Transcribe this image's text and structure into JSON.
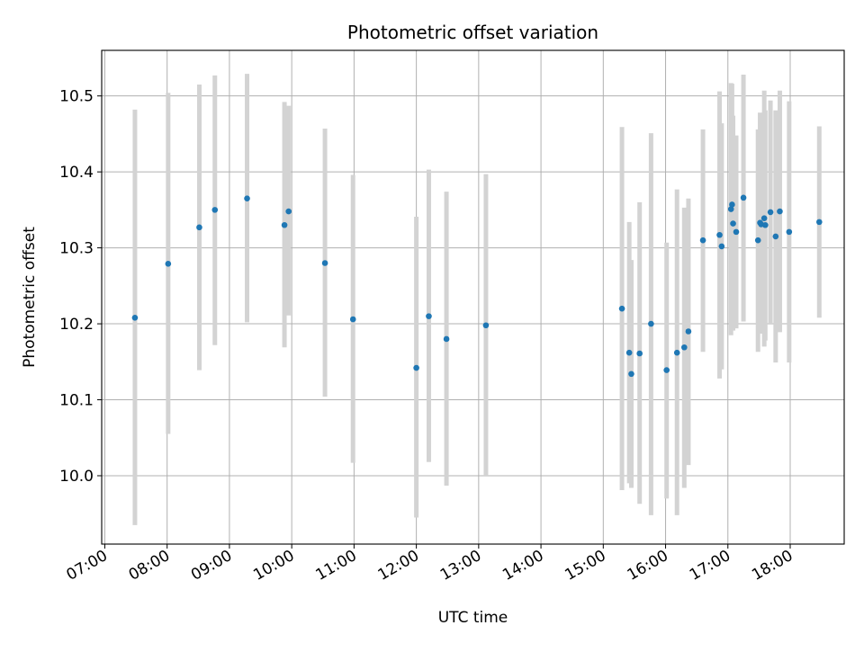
{
  "chart_data": {
    "type": "scatter",
    "title": "Photometric offset variation",
    "xlabel": "UTC time",
    "ylabel": "Photometric offset",
    "xlim": [
      "06:57",
      "18:52"
    ],
    "ylim": [
      9.91,
      10.56
    ],
    "xticks": [
      "07:00",
      "08:00",
      "09:00",
      "10:00",
      "11:00",
      "12:00",
      "13:00",
      "14:00",
      "15:00",
      "16:00",
      "17:00",
      "18:00"
    ],
    "yticks": [
      "10.0",
      "10.1",
      "10.2",
      "10.3",
      "10.4",
      "10.5"
    ],
    "grid": true,
    "point_color": "#1f77b4",
    "errorbar_color": "#d3d3d3",
    "points": [
      {
        "x": "07:29",
        "y": 10.208,
        "ylow": 9.935,
        "yhigh": 10.482
      },
      {
        "x": "08:01",
        "y": 10.279,
        "ylow": 10.055,
        "yhigh": 10.504
      },
      {
        "x": "08:31",
        "y": 10.327,
        "ylow": 10.139,
        "yhigh": 10.515
      },
      {
        "x": "08:46",
        "y": 10.35,
        "ylow": 10.172,
        "yhigh": 10.527
      },
      {
        "x": "09:17",
        "y": 10.365,
        "ylow": 10.202,
        "yhigh": 10.529
      },
      {
        "x": "09:53",
        "y": 10.33,
        "ylow": 10.169,
        "yhigh": 10.492
      },
      {
        "x": "09:57",
        "y": 10.348,
        "ylow": 10.211,
        "yhigh": 10.487
      },
      {
        "x": "10:32",
        "y": 10.28,
        "ylow": 10.104,
        "yhigh": 10.457
      },
      {
        "x": "10:59",
        "y": 10.206,
        "ylow": 10.017,
        "yhigh": 10.396
      },
      {
        "x": "12:00",
        "y": 10.142,
        "ylow": 9.945,
        "yhigh": 10.341
      },
      {
        "x": "12:12",
        "y": 10.21,
        "ylow": 10.018,
        "yhigh": 10.403
      },
      {
        "x": "12:29",
        "y": 10.18,
        "ylow": 9.987,
        "yhigh": 10.374
      },
      {
        "x": "13:07",
        "y": 10.198,
        "ylow": 9.999,
        "yhigh": 10.397
      },
      {
        "x": "15:18",
        "y": 10.22,
        "ylow": 9.981,
        "yhigh": 10.459
      },
      {
        "x": "15:25",
        "y": 10.162,
        "ylow": 9.99,
        "yhigh": 10.334
      },
      {
        "x": "15:27",
        "y": 10.134,
        "ylow": 9.984,
        "yhigh": 10.284
      },
      {
        "x": "15:35",
        "y": 10.161,
        "ylow": 9.963,
        "yhigh": 10.36
      },
      {
        "x": "15:46",
        "y": 10.2,
        "ylow": 9.948,
        "yhigh": 10.451
      },
      {
        "x": "16:01",
        "y": 10.139,
        "ylow": 9.97,
        "yhigh": 10.307
      },
      {
        "x": "16:11",
        "y": 10.162,
        "ylow": 9.948,
        "yhigh": 10.377
      },
      {
        "x": "16:18",
        "y": 10.169,
        "ylow": 9.984,
        "yhigh": 10.353
      },
      {
        "x": "16:22",
        "y": 10.19,
        "ylow": 10.014,
        "yhigh": 10.365
      },
      {
        "x": "16:36",
        "y": 10.31,
        "ylow": 10.163,
        "yhigh": 10.456
      },
      {
        "x": "16:52",
        "y": 10.317,
        "ylow": 10.128,
        "yhigh": 10.506
      },
      {
        "x": "16:54",
        "y": 10.302,
        "ylow": 10.14,
        "yhigh": 10.464
      },
      {
        "x": "17:03",
        "y": 10.351,
        "ylow": 10.185,
        "yhigh": 10.517
      },
      {
        "x": "17:04",
        "y": 10.357,
        "ylow": 10.197,
        "yhigh": 10.516
      },
      {
        "x": "17:05",
        "y": 10.332,
        "ylow": 10.191,
        "yhigh": 10.474
      },
      {
        "x": "17:08",
        "y": 10.321,
        "ylow": 10.194,
        "yhigh": 10.448
      },
      {
        "x": "17:15",
        "y": 10.366,
        "ylow": 10.203,
        "yhigh": 10.528
      },
      {
        "x": "17:29",
        "y": 10.31,
        "ylow": 10.163,
        "yhigh": 10.456
      },
      {
        "x": "17:31",
        "y": 10.333,
        "ylow": 10.187,
        "yhigh": 10.478
      },
      {
        "x": "17:32",
        "y": 10.331,
        "ylow": 10.193,
        "yhigh": 10.47
      },
      {
        "x": "17:35",
        "y": 10.339,
        "ylow": 10.17,
        "yhigh": 10.507
      },
      {
        "x": "17:36",
        "y": 10.33,
        "ylow": 10.178,
        "yhigh": 10.481
      },
      {
        "x": "17:41",
        "y": 10.347,
        "ylow": 10.199,
        "yhigh": 10.494
      },
      {
        "x": "17:46",
        "y": 10.315,
        "ylow": 10.149,
        "yhigh": 10.481
      },
      {
        "x": "17:50",
        "y": 10.348,
        "ylow": 10.189,
        "yhigh": 10.507
      },
      {
        "x": "17:59",
        "y": 10.321,
        "ylow": 10.149,
        "yhigh": 10.493
      },
      {
        "x": "18:28",
        "y": 10.334,
        "ylow": 10.208,
        "yhigh": 10.46
      }
    ]
  }
}
